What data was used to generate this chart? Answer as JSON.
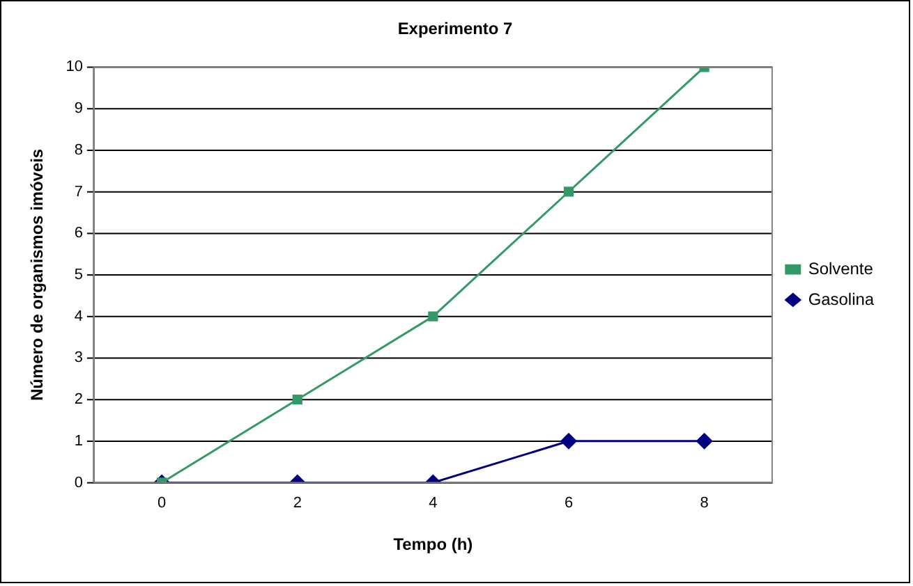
{
  "chart_data": {
    "type": "line",
    "title": "Experimento 7",
    "xlabel": "Tempo (h)",
    "ylabel": "Número de organismos imóveis",
    "categories": [
      "0",
      "2",
      "4",
      "6",
      "8"
    ],
    "series": [
      {
        "name": "Solvente",
        "color": "#339966",
        "values": [
          0,
          2,
          4,
          7,
          10
        ],
        "marker": "square"
      },
      {
        "name": "Gasolina",
        "color": "#000080",
        "values": [
          0,
          0,
          0,
          1,
          1
        ],
        "marker": "diamond"
      }
    ],
    "ylim": [
      0,
      10
    ],
    "yticks": [
      0,
      1,
      2,
      3,
      4,
      5,
      6,
      7,
      8,
      9,
      10
    ],
    "grid": "y",
    "legend": "right",
    "line_style": "solid"
  }
}
